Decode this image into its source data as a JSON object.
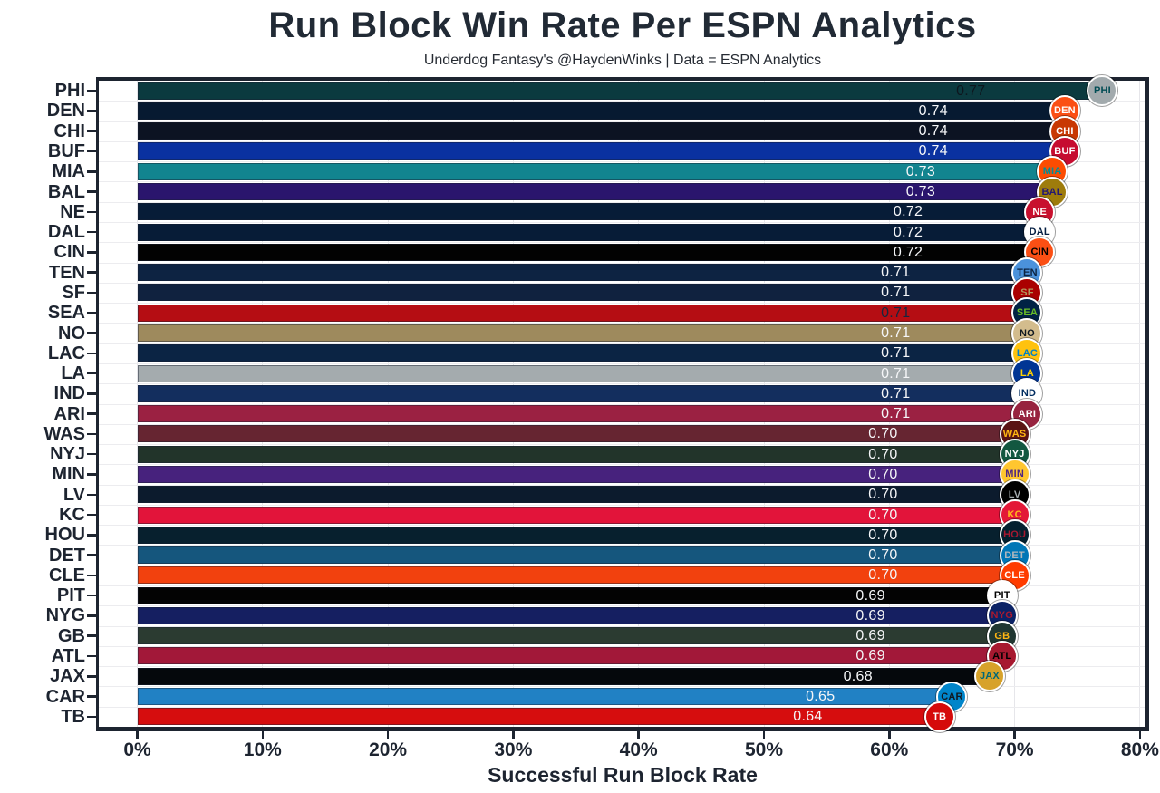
{
  "title": "Run Block Win Rate Per ESPN Analytics",
  "subtitle": "Underdog Fantasy's @HaydenWinks | Data = ESPN Analytics",
  "chart_data": {
    "type": "bar",
    "orientation": "horizontal",
    "title": "Run Block Win Rate Per ESPN Analytics",
    "subtitle": "Underdog Fantasy's @HaydenWinks | Data = ESPN Analytics",
    "xlabel": "Successful Run Block Rate",
    "x_ticks": [
      "0%",
      "10%",
      "20%",
      "30%",
      "40%",
      "50%",
      "60%",
      "70%",
      "80%"
    ],
    "xlim_percent": [
      0,
      80
    ],
    "grid": true,
    "categories": [
      "PHI",
      "DEN",
      "CHI",
      "BUF",
      "MIA",
      "BAL",
      "NE",
      "DAL",
      "CIN",
      "TEN",
      "SF",
      "SEA",
      "NO",
      "LAC",
      "LA",
      "IND",
      "ARI",
      "WAS",
      "NYJ",
      "MIN",
      "LV",
      "KC",
      "HOU",
      "DET",
      "CLE",
      "PIT",
      "NYG",
      "GB",
      "ATL",
      "JAX",
      "CAR",
      "TB"
    ],
    "values": [
      0.77,
      0.74,
      0.74,
      0.74,
      0.73,
      0.73,
      0.72,
      0.72,
      0.72,
      0.71,
      0.71,
      0.71,
      0.71,
      0.71,
      0.71,
      0.71,
      0.71,
      0.7,
      0.7,
      0.7,
      0.7,
      0.7,
      0.7,
      0.7,
      0.7,
      0.69,
      0.69,
      0.69,
      0.69,
      0.68,
      0.65,
      0.64
    ],
    "value_labels": [
      "0.77",
      "0.74",
      "0.74",
      "0.74",
      "0.73",
      "0.73",
      "0.72",
      "0.72",
      "0.72",
      "0.71",
      "0.71",
      "0.71",
      "0.71",
      "0.71",
      "0.71",
      "0.71",
      "0.71",
      "0.70",
      "0.70",
      "0.70",
      "0.70",
      "0.70",
      "0.70",
      "0.70",
      "0.70",
      "0.69",
      "0.69",
      "0.69",
      "0.69",
      "0.68",
      "0.65",
      "0.64"
    ],
    "bar_colors": [
      "#0b3a3f",
      "#071a31",
      "#0c1322",
      "#0a31a0",
      "#12848f",
      "#2a156d",
      "#071c37",
      "#071c37",
      "#020202",
      "#0d2342",
      "#10223f",
      "#b50d13",
      "#9e8a5d",
      "#0b2444",
      "#a4abae",
      "#132e5e",
      "#9b2142",
      "#662531",
      "#22342a",
      "#47227d",
      "#0c1b2d",
      "#e2143a",
      "#07202e",
      "#15567d",
      "#f2410e",
      "#030303",
      "#151f61",
      "#2b3b31",
      "#a21839",
      "#05080c",
      "#2181c4",
      "#d60d0e"
    ],
    "value_label_colors": [
      "#0d161e",
      "#f5f6f8",
      "#f5f6f8",
      "#f5f6f8",
      "#f5f6f8",
      "#f5f6f8",
      "#f5f6f8",
      "#f5f6f8",
      "#f5f6f8",
      "#f5f6f8",
      "#f5f6f8",
      "#16263e",
      "#f5f6f8",
      "#f5f6f8",
      "#f5f6f8",
      "#f5f6f8",
      "#f5f6f8",
      "#f5f6f8",
      "#f5f6f8",
      "#f5f6f8",
      "#f5f6f8",
      "#f5f6f8",
      "#f5f6f8",
      "#f5f6f8",
      "#f5f6f8",
      "#f5f6f8",
      "#f5f6f8",
      "#f5f6f8",
      "#f5f6f8",
      "#f5f6f8",
      "#f5f6f8",
      "#f5f6f8"
    ],
    "logo_bg": [
      "#a2aaad",
      "#fb4f14",
      "#c83803",
      "#c60c30",
      "#fc4c02",
      "#9e7c0c",
      "#c8102e",
      "#ffffff",
      "#fb4f14",
      "#4b92db",
      "#aa0000",
      "#002244",
      "#d3bc8d",
      "#ffc20e",
      "#003594",
      "#ffffff",
      "#97233f",
      "#5a1414",
      "#125740",
      "#ffc62f",
      "#000000",
      "#e31837",
      "#03202f",
      "#0076b6",
      "#ff3c00",
      "#ffffff",
      "#0b2265",
      "#203731",
      "#a71930",
      "#d7a22a",
      "#0085ca",
      "#d50a0a"
    ],
    "logo_fg": [
      "#004c54",
      "#ffffff",
      "#ffffff",
      "#ffffff",
      "#008e97",
      "#241773",
      "#ffffff",
      "#041e42",
      "#000000",
      "#0c2340",
      "#b3995d",
      "#69be28",
      "#101820",
      "#0080c6",
      "#ffd100",
      "#002c5f",
      "#ffffff",
      "#ffb612",
      "#ffffff",
      "#4f2683",
      "#a5acaf",
      "#ffb81c",
      "#a71930",
      "#b0b7bc",
      "#ffffff",
      "#000000",
      "#a71930",
      "#ffb612",
      "#000000",
      "#006778",
      "#101820",
      "#ffffff"
    ]
  },
  "style": {
    "spine_color": "#1d2430",
    "grid_color": "#e6e6ea",
    "background": "#ffffff",
    "title_color": "#212a35",
    "tick_label_color": "#1d2430"
  }
}
